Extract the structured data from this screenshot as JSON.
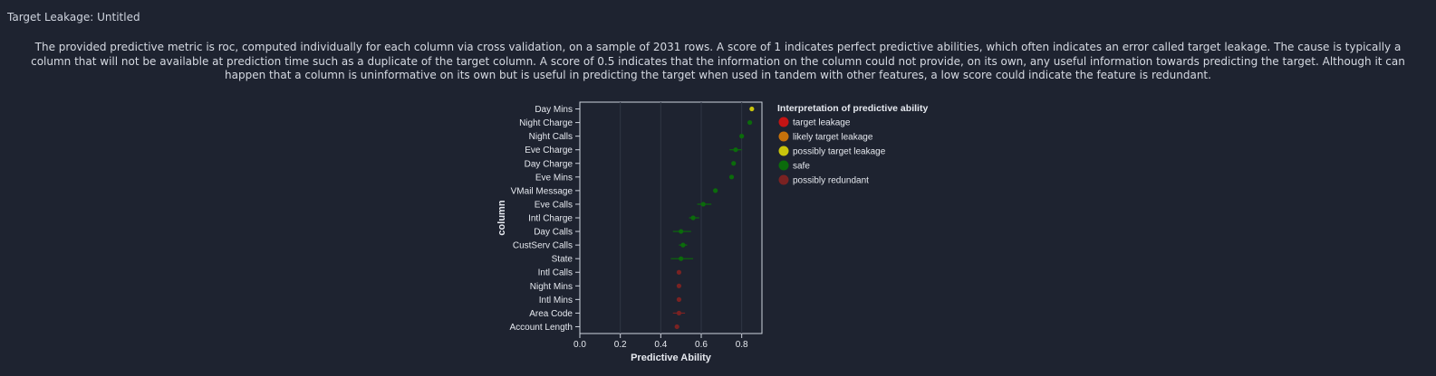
{
  "header": {
    "title": "Target Leakage: Untitled"
  },
  "description": "The provided predictive metric is roc, computed individually for each column via cross validation, on a sample of 2031 rows. A score of 1 indicates perfect predictive abilities, which often indicates an error called target leakage. The cause is typically a column that will not be available at prediction time such as a duplicate of the target column. A score of 0.5 indicates that the information on the column could not provide, on its own, any useful information towards predicting the target. Although it can happen that a column is uninformative on its own but is useful in predicting the target when used in tandem with other features, a low score could indicate the feature is redundant.",
  "colors": {
    "target leakage": "#c41414",
    "likely target leakage": "#c7720b",
    "possibly target leakage": "#c9c40c",
    "safe": "#0b6b0b",
    "possibly redundant": "#7a2222"
  },
  "chart_data": {
    "type": "scatter",
    "xlabel": "Predictive Ability",
    "ylabel": "column",
    "xlim": [
      0,
      0.9
    ],
    "xticks": [
      0.0,
      0.2,
      0.4,
      0.6,
      0.8
    ],
    "xtick_labels": [
      "0.0",
      "0.2",
      "0.4",
      "0.6",
      "0.8"
    ],
    "grid": true,
    "legend_title": "Interpretation of predictive ability",
    "legend_position": "right",
    "legend_entries": [
      "target leakage",
      "likely target leakage",
      "possibly target leakage",
      "safe",
      "possibly redundant"
    ],
    "points": [
      {
        "column": "Day Mins",
        "value": 0.85,
        "low": 0.84,
        "high": 0.86,
        "category": "possibly target leakage"
      },
      {
        "column": "Night Charge",
        "value": 0.84,
        "low": 0.84,
        "high": 0.84,
        "category": "safe"
      },
      {
        "column": "Night Calls",
        "value": 0.8,
        "low": 0.79,
        "high": 0.81,
        "category": "safe"
      },
      {
        "column": "Eve Charge",
        "value": 0.77,
        "low": 0.74,
        "high": 0.8,
        "category": "safe"
      },
      {
        "column": "Day Charge",
        "value": 0.76,
        "low": 0.76,
        "high": 0.76,
        "category": "safe"
      },
      {
        "column": "Eve Mins",
        "value": 0.75,
        "low": 0.75,
        "high": 0.75,
        "category": "safe"
      },
      {
        "column": "VMail Message",
        "value": 0.67,
        "low": 0.67,
        "high": 0.67,
        "category": "safe"
      },
      {
        "column": "Eve Calls",
        "value": 0.61,
        "low": 0.58,
        "high": 0.65,
        "category": "safe"
      },
      {
        "column": "Intl Charge",
        "value": 0.56,
        "low": 0.54,
        "high": 0.59,
        "category": "safe"
      },
      {
        "column": "Day Calls",
        "value": 0.5,
        "low": 0.46,
        "high": 0.55,
        "category": "safe"
      },
      {
        "column": "CustServ Calls",
        "value": 0.51,
        "low": 0.49,
        "high": 0.53,
        "category": "safe"
      },
      {
        "column": "State",
        "value": 0.5,
        "low": 0.45,
        "high": 0.56,
        "category": "safe"
      },
      {
        "column": "Intl Calls",
        "value": 0.49,
        "low": 0.49,
        "high": 0.49,
        "category": "possibly redundant"
      },
      {
        "column": "Night Mins",
        "value": 0.49,
        "low": 0.49,
        "high": 0.49,
        "category": "possibly redundant"
      },
      {
        "column": "Intl Mins",
        "value": 0.49,
        "low": 0.49,
        "high": 0.49,
        "category": "possibly redundant"
      },
      {
        "column": "Area Code",
        "value": 0.49,
        "low": 0.46,
        "high": 0.52,
        "category": "possibly redundant"
      },
      {
        "column": "Account Length",
        "value": 0.48,
        "low": 0.48,
        "high": 0.48,
        "category": "possibly redundant"
      }
    ]
  }
}
